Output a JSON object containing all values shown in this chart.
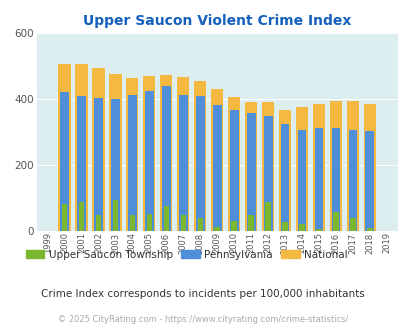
{
  "title": "Upper Saucon Violent Crime Index",
  "years": [
    1999,
    2000,
    2001,
    2002,
    2003,
    2004,
    2005,
    2006,
    2007,
    2008,
    2009,
    2010,
    2011,
    2012,
    2013,
    2014,
    2015,
    2016,
    2017,
    2018,
    2019
  ],
  "upper_saucon": [
    0,
    83,
    88,
    50,
    93,
    47,
    52,
    75,
    48,
    38,
    13,
    30,
    48,
    88,
    27,
    22,
    5,
    58,
    40,
    10,
    0
  ],
  "pennsylvania": [
    0,
    422,
    408,
    402,
    400,
    412,
    423,
    438,
    413,
    410,
    382,
    367,
    357,
    349,
    323,
    305,
    313,
    313,
    307,
    302,
    0
  ],
  "national": [
    0,
    507,
    507,
    495,
    475,
    463,
    469,
    474,
    467,
    455,
    430,
    405,
    392,
    392,
    368,
    375,
    384,
    395,
    395,
    384,
    0
  ],
  "upper_saucon_color": "#7cb82f",
  "pennsylvania_color": "#4f8fda",
  "national_color": "#f5b942",
  "bg_color": "#ddeef0",
  "title_color": "#1560bd",
  "ylim": [
    0,
    600
  ],
  "yticks": [
    0,
    200,
    400,
    600
  ],
  "subtitle": "Crime Index corresponds to incidents per 100,000 inhabitants",
  "footer": "© 2025 CityRating.com - https://www.cityrating.com/crime-statistics/",
  "legend_labels": [
    "Upper Saucon Township",
    "Pennsylvania",
    "National"
  ]
}
